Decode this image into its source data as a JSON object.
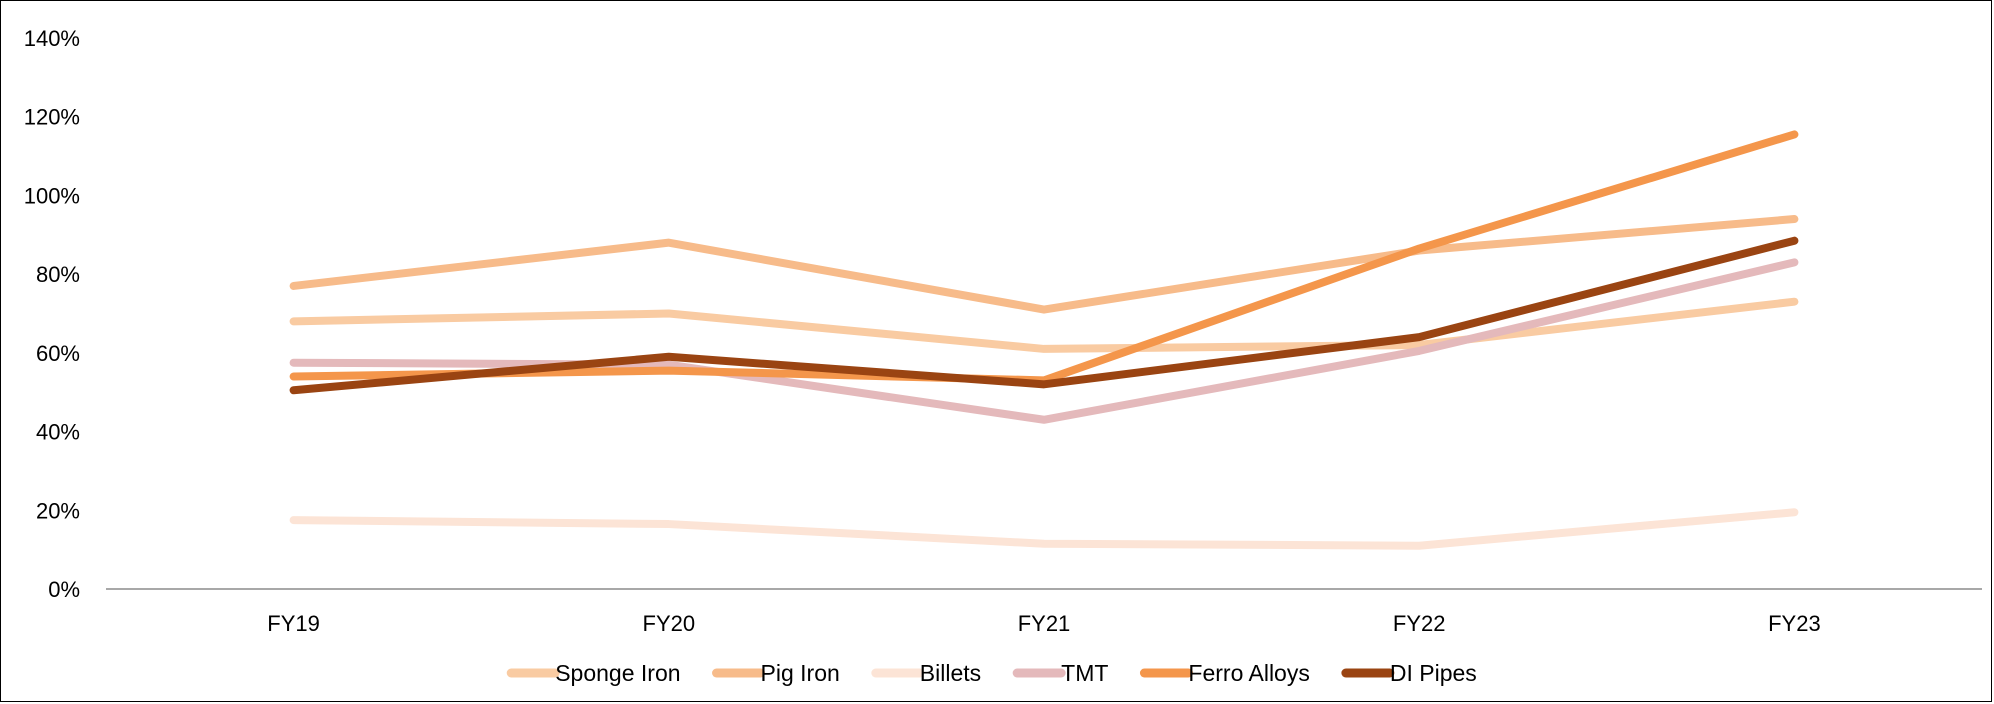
{
  "chart_data": {
    "type": "line",
    "categories": [
      "FY19",
      "FY20",
      "FY21",
      "FY22",
      "FY23"
    ],
    "ylim": [
      0,
      140
    ],
    "yticks": [
      0,
      20,
      40,
      60,
      80,
      100,
      120,
      140
    ],
    "ytick_labels": [
      "0%",
      "20%",
      "40%",
      "60%",
      "80%",
      "100%",
      "120%",
      "140%"
    ],
    "grid": false,
    "legend_position": "bottom",
    "series": [
      {
        "name": "Sponge Iron",
        "color": "#F9CBA2",
        "values": [
          68,
          70,
          61,
          62,
          73
        ]
      },
      {
        "name": "Pig Iron",
        "color": "#F7BB8A",
        "values": [
          77,
          88,
          71,
          86,
          94
        ]
      },
      {
        "name": "Billets",
        "color": "#FCE4D6",
        "values": [
          17.5,
          16.5,
          11.5,
          11,
          19.5
        ]
      },
      {
        "name": "TMT",
        "color": "#E4B9BB",
        "values": [
          57.5,
          57,
          43,
          60.5,
          83
        ]
      },
      {
        "name": "Ferro Alloys",
        "color": "#F4964B",
        "values": [
          54,
          55.5,
          53,
          86.5,
          115.5
        ]
      },
      {
        "name": "DI Pipes",
        "color": "#9A4412",
        "values": [
          50.5,
          59,
          52,
          64,
          88.5
        ]
      }
    ]
  }
}
